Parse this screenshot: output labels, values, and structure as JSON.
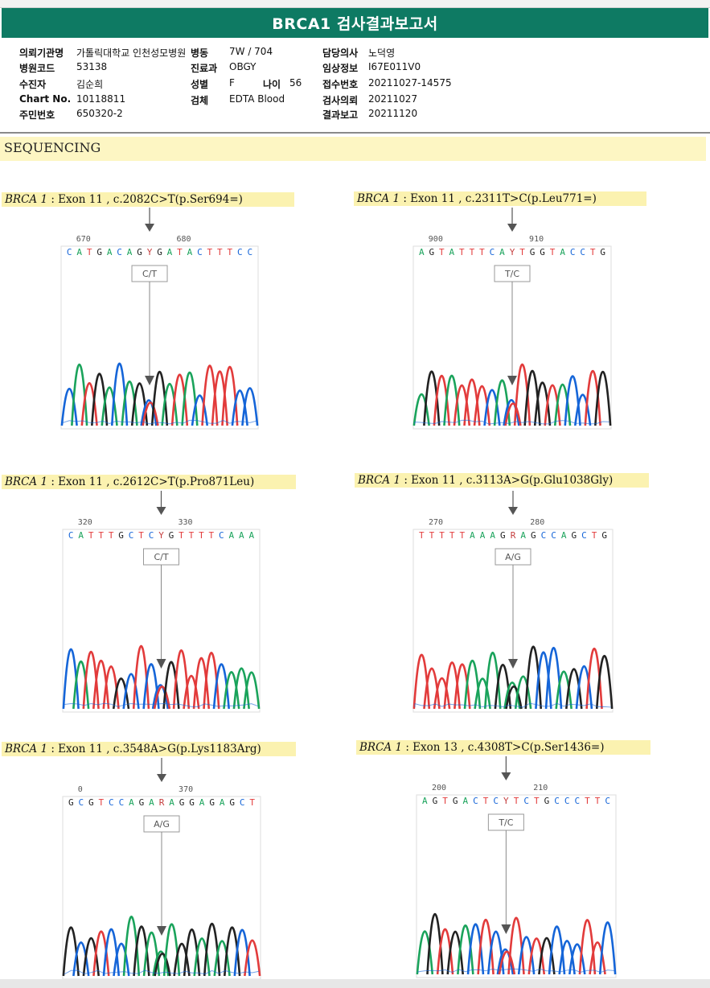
{
  "report": {
    "title": "BRCA1 검사결과보고서",
    "fields": [
      {
        "label": "의뢰기관명",
        "value": "가톨릭대학교 인천성모병원"
      },
      {
        "label": "병동",
        "value": "7W / 704"
      },
      {
        "label": "담당의사",
        "value": "노덕영"
      },
      {
        "label": "병원코드",
        "value": "53138"
      },
      {
        "label": "진료과",
        "value": "OBGY"
      },
      {
        "label": "임상정보",
        "value": "I67E011V0"
      },
      {
        "label": "수진자",
        "value": "김순희"
      },
      {
        "label": "성별",
        "value": "F"
      },
      {
        "label": "나이",
        "value": "56"
      },
      {
        "label": "접수번호",
        "value": "20211027-14575"
      },
      {
        "label": "Chart No.",
        "value": "10118811"
      },
      {
        "label": "검체",
        "value": "EDTA Blood"
      },
      {
        "label": "검사의뢰",
        "value": "20211027"
      },
      {
        "label": "주민번호",
        "value": "650320-2"
      },
      {
        "label": "결과보고",
        "value": "20211120"
      }
    ],
    "section": "SEQUENCING"
  },
  "colors": {
    "A": "#1aa35b",
    "C": "#1565d8",
    "G": "#222222",
    "T": "#e23b3b",
    "header": "#0e7a63",
    "highlight": "#fbf2b0"
  },
  "variants": [
    {
      "gene": "BRCA 1",
      "detail": " : Exon 11 , c.2082C>T(p.Ser694=)",
      "seq": "CATGACAGYGATACTTTCC",
      "pos_labels": [
        "670",
        "680"
      ],
      "call": "C/T",
      "call_index": 8
    },
    {
      "gene": "BRCA 1",
      "detail": " : Exon 11 , c.2311T>C(p.Leu771=)",
      "seq": "AGTATTTCAYTGGTACCTG",
      "pos_labels": [
        "900",
        "910"
      ],
      "call": "T/C",
      "call_index": 9
    },
    {
      "gene": "BRCA 1",
      "detail": " : Exon 11 , c.2612C>T(p.Pro871Leu)",
      "seq": "CATTTGCTCYGTTTTCAAA",
      "pos_labels": [
        "320",
        "330"
      ],
      "call": "C/T",
      "call_index": 9
    },
    {
      "gene": "BRCA 1",
      "detail": " : Exon 11 , c.3113A>G(p.Glu1038Gly)",
      "seq": "TTTTTAAAGRAGCCAGCTG",
      "pos_labels": [
        "270",
        "280"
      ],
      "call": "A/G",
      "call_index": 9
    },
    {
      "gene": "BRCA 1",
      "detail": " : Exon 11 , c.3548A>G(p.Lys1183Arg)",
      "seq": "GCGTCCAGARAGGAGAGCT",
      "pos_labels": [
        "0",
        "370"
      ],
      "call": "A/G",
      "call_index": 9
    },
    {
      "gene": "BRCA 1",
      "detail": " : Exon 13 , c.4308T>C(p.Ser1436=)",
      "seq": "AGTGACTCYTCTGCCCTTC",
      "pos_labels": [
        "200",
        "210"
      ],
      "call": "T/C",
      "call_index": 8
    }
  ]
}
